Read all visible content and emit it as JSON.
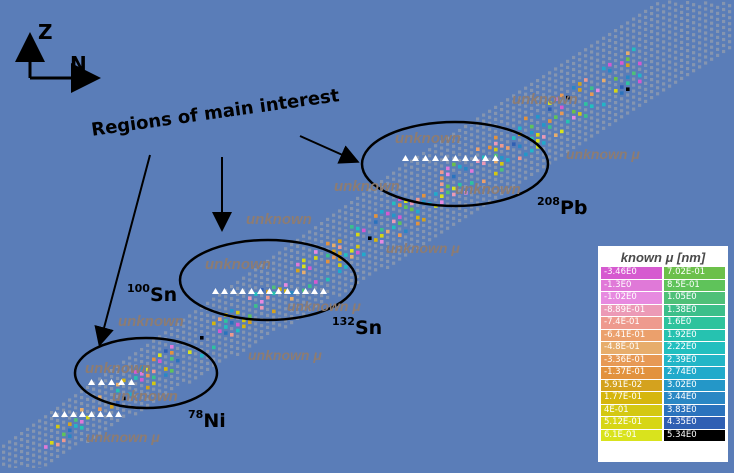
{
  "axes": {
    "vertical": "Z",
    "horizontal": "N"
  },
  "headline": "Regions of main interest",
  "nuclei": [
    {
      "mass": "78",
      "symbol": "Ni"
    },
    {
      "mass": "100",
      "symbol": "Sn"
    },
    {
      "mass": "132",
      "symbol": "Sn"
    },
    {
      "mass": "208",
      "symbol": "Pb"
    }
  ],
  "unknown_label": "unknown",
  "unknown_mu_label": "unknown μ",
  "legend": {
    "title": "known μ [nm]",
    "left_column": [
      {
        "value": "-3.46E0",
        "color": "#d65ad0"
      },
      {
        "value": "-1.3E0",
        "color": "#e079d8"
      },
      {
        "value": "-1.02E0",
        "color": "#e78ae0"
      },
      {
        "value": "-8.89E-01",
        "color": "#ec9ab6"
      },
      {
        "value": "-7.4E-01",
        "color": "#ee9a8e"
      },
      {
        "value": "-6.41E-01",
        "color": "#eba06c"
      },
      {
        "value": "-4.8E-01",
        "color": "#e7ad6c"
      },
      {
        "value": "-3.36E-01",
        "color": "#e79955"
      },
      {
        "value": "-1.37E-01",
        "color": "#e2923e"
      },
      {
        "value": "5.91E-02",
        "color": "#d4a21e"
      },
      {
        "value": "1.77E-01",
        "color": "#d6b60d"
      },
      {
        "value": "4E-01",
        "color": "#d4c812"
      },
      {
        "value": "5.12E-01",
        "color": "#d7d615"
      },
      {
        "value": "6.1E-01",
        "color": "#d9e31d"
      }
    ],
    "right_column": [
      {
        "value": "7.02E-01",
        "color": "#6cc04a"
      },
      {
        "value": "8.5E-01",
        "color": "#5fc35a"
      },
      {
        "value": "1.05E0",
        "color": "#4fc078"
      },
      {
        "value": "1.38E0",
        "color": "#3cbf8a"
      },
      {
        "value": "1.6E0",
        "color": "#2ec39d"
      },
      {
        "value": "1.92E0",
        "color": "#26c2b0"
      },
      {
        "value": "2.22E0",
        "color": "#22bfbf"
      },
      {
        "value": "2.39E0",
        "color": "#22b6c7"
      },
      {
        "value": "2.74E0",
        "color": "#21aacb"
      },
      {
        "value": "3.02E0",
        "color": "#2497c8"
      },
      {
        "value": "3.44E0",
        "color": "#2a87c4"
      },
      {
        "value": "3.83E0",
        "color": "#2b73bd"
      },
      {
        "value": "4.35E0",
        "color": "#2f5fb3"
      },
      {
        "value": "5.34E0",
        "color": "#000000"
      }
    ]
  },
  "colors": {
    "background": "#5a7db8",
    "unknown_cell": "#a9a9a9",
    "known_marker": "#ffffff",
    "ellipse": "#000000"
  }
}
